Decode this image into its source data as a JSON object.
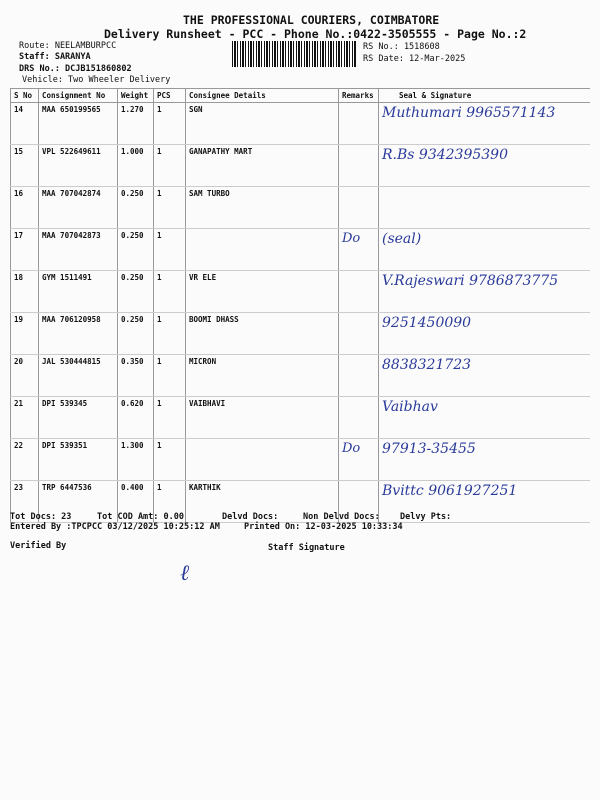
{
  "header": {
    "company": "THE PROFESSIONAL COURIERS, COIMBATORE",
    "subtitle": "Delivery Runsheet - PCC - Phone No.:0422-3505555 - Page No.:2",
    "route": "Route: NEELAMBURPCC",
    "staff": "Staff: SARANYA",
    "drs": "DRS No.: DCJB151860802",
    "vehicle": "Vehicle: Two Wheeler Delivery",
    "rs_no": "RS No.: 1518608",
    "rs_date": "RS Date: 12-Mar-2025"
  },
  "columns": [
    "S No",
    "Consignment No",
    "Weight",
    "PCS",
    "Consignee Details",
    "Remarks",
    "Seal & Signature"
  ],
  "rows": [
    {
      "sno": "14",
      "cn": "MAA 650199565",
      "wt": "1.270",
      "pcs": "1",
      "consignee": "SGN",
      "remark": "",
      "sig": "Muthumari 9965571143"
    },
    {
      "sno": "15",
      "cn": "VPL 522649611",
      "wt": "1.000",
      "pcs": "1",
      "consignee": "GANAPATHY MART",
      "remark": "",
      "sig": "R.Bs 9342395390"
    },
    {
      "sno": "16",
      "cn": "MAA 707042874",
      "wt": "0.250",
      "pcs": "1",
      "consignee": "SAM TURBO",
      "remark": "",
      "sig": ""
    },
    {
      "sno": "17",
      "cn": "MAA 707042873",
      "wt": "0.250",
      "pcs": "1",
      "consignee": "",
      "remark": "Do",
      "sig": "(seal)"
    },
    {
      "sno": "18",
      "cn": "GYM 1511491",
      "wt": "0.250",
      "pcs": "1",
      "consignee": "VR ELE",
      "remark": "",
      "sig": "V.Rajeswari 9786873775"
    },
    {
      "sno": "19",
      "cn": "MAA 706120958",
      "wt": "0.250",
      "pcs": "1",
      "consignee": "BOOMI DHASS",
      "remark": "",
      "sig": "9251450090"
    },
    {
      "sno": "20",
      "cn": "JAL 530444815",
      "wt": "0.350",
      "pcs": "1",
      "consignee": "MICRON",
      "remark": "",
      "sig": "8838321723"
    },
    {
      "sno": "21",
      "cn": "DPI 539345",
      "wt": "0.620",
      "pcs": "1",
      "consignee": "VAIBHAVI",
      "remark": "",
      "sig": "Vaibhav"
    },
    {
      "sno": "22",
      "cn": "DPI 539351",
      "wt": "1.300",
      "pcs": "1",
      "consignee": "",
      "remark": "Do",
      "sig": "97913-35455"
    },
    {
      "sno": "23",
      "cn": "TRP 6447536",
      "wt": "0.400",
      "pcs": "1",
      "consignee": "KARTHIK",
      "remark": "",
      "sig": "Bvittc 9061927251"
    }
  ],
  "footer": {
    "tot_docs": "Tot Docs:  23",
    "cod": "Tot COD Amt:    0.00",
    "delvd": "Delvd Docs:",
    "non_delvd": "Non Delvd Docs:",
    "pts": "Delvy Pts:",
    "entered": "Entered By :TPCPCC 03/12/2025 10:25:12 AM",
    "printed": "Printed On: 12-03-2025 10:33:34",
    "verified": "Verified By",
    "staff_sig": "Staff Signature"
  },
  "ink_color": "#2a3a9a"
}
